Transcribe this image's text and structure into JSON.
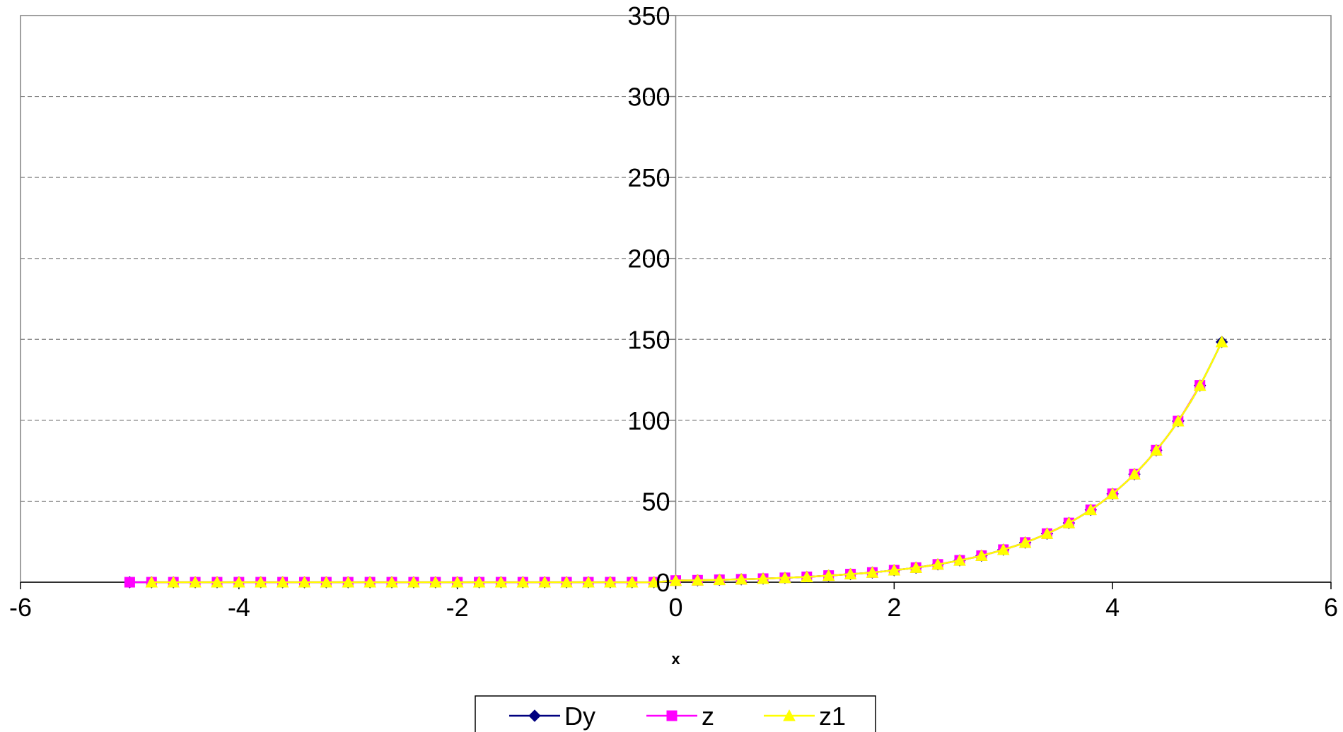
{
  "chart_data": {
    "type": "line",
    "title": "",
    "xlabel": "x",
    "ylabel": "",
    "xlim": [
      -6,
      6
    ],
    "ylim": [
      0,
      350
    ],
    "x_ticks": [
      -6,
      -4,
      -2,
      0,
      2,
      4,
      6
    ],
    "y_ticks": [
      0,
      50,
      100,
      150,
      200,
      250,
      300,
      350
    ],
    "grid": "horizontal dashed",
    "legend_position": "bottom",
    "series": [
      {
        "name": "Dy",
        "color": "#000080",
        "marker": "diamond",
        "x": [
          -5,
          -4.8,
          -4.6,
          -4.4,
          -4.2,
          -4,
          -3.8,
          -3.6,
          -3.4,
          -3.2,
          -3,
          -2.8,
          -2.6,
          -2.4,
          -2.2,
          -2,
          -1.8,
          -1.6,
          -1.4,
          -1.2,
          -1,
          -0.8,
          -0.6,
          -0.4,
          -0.2,
          0,
          0.2,
          0.4,
          0.6,
          0.8,
          1,
          1.2,
          1.4,
          1.6,
          1.8,
          2,
          2.2,
          2.4,
          2.6,
          2.8,
          3,
          3.2,
          3.4,
          3.6,
          3.8,
          4,
          4.2,
          4.4,
          4.6,
          4.8,
          5
        ],
        "y": [
          0,
          0,
          0,
          0,
          0,
          0,
          0,
          0,
          0,
          0,
          0,
          0,
          0,
          0,
          0,
          0,
          0,
          0,
          0,
          0,
          0,
          0,
          0,
          0,
          0,
          1,
          1.2,
          1.5,
          1.8,
          2.2,
          2.7,
          3.3,
          4.1,
          5.0,
          6.0,
          7.4,
          9.0,
          11.0,
          13.5,
          16.4,
          20.1,
          24.5,
          30.0,
          36.6,
          44.7,
          54.6,
          66.7,
          81.5,
          99.5,
          121.5,
          148.4
        ]
      },
      {
        "name": "z",
        "color": "#ff00ff",
        "marker": "square",
        "x": [
          -5,
          -4.8,
          -4.6,
          -4.4,
          -4.2,
          -4,
          -3.8,
          -3.6,
          -3.4,
          -3.2,
          -3,
          -2.8,
          -2.6,
          -2.4,
          -2.2,
          -2,
          -1.8,
          -1.6,
          -1.4,
          -1.2,
          -1,
          -0.8,
          -0.6,
          -0.4,
          -0.2,
          0,
          0.2,
          0.4,
          0.6,
          0.8,
          1,
          1.2,
          1.4,
          1.6,
          1.8,
          2,
          2.2,
          2.4,
          2.6,
          2.8,
          3,
          3.2,
          3.4,
          3.6,
          3.8,
          4,
          4.2,
          4.4,
          4.6,
          4.8
        ],
        "y": [
          0,
          0,
          0,
          0,
          0,
          0,
          0,
          0,
          0,
          0,
          0,
          0,
          0,
          0,
          0,
          0,
          0,
          0,
          0,
          0,
          0,
          0,
          0,
          0,
          0,
          1,
          1.2,
          1.5,
          1.8,
          2.2,
          2.7,
          3.3,
          4.1,
          5.0,
          6.0,
          7.4,
          9.0,
          11.0,
          13.5,
          16.4,
          20.1,
          24.5,
          30.0,
          36.6,
          44.7,
          54.6,
          66.7,
          81.5,
          99.5,
          121.5
        ]
      },
      {
        "name": "z1",
        "color": "#ffff00",
        "marker": "triangle",
        "x": [
          -4.8,
          -4.6,
          -4.4,
          -4.2,
          -4,
          -3.8,
          -3.6,
          -3.4,
          -3.2,
          -3,
          -2.8,
          -2.6,
          -2.4,
          -2.2,
          -2,
          -1.8,
          -1.6,
          -1.4,
          -1.2,
          -1,
          -0.8,
          -0.6,
          -0.4,
          -0.2,
          0,
          0.2,
          0.4,
          0.6,
          0.8,
          1,
          1.2,
          1.4,
          1.6,
          1.8,
          2,
          2.2,
          2.4,
          2.6,
          2.8,
          3,
          3.2,
          3.4,
          3.6,
          3.8,
          4,
          4.2,
          4.4,
          4.6,
          4.8,
          5
        ],
        "y": [
          0,
          0,
          0,
          0,
          0,
          0,
          0,
          0,
          0,
          0,
          0,
          0,
          0,
          0,
          0,
          0,
          0,
          0,
          0,
          0,
          0,
          0,
          0,
          0,
          1,
          1.2,
          1.5,
          1.8,
          2.2,
          2.7,
          3.3,
          4.1,
          5.0,
          6.0,
          7.4,
          9.0,
          11.0,
          13.5,
          16.4,
          20.1,
          24.5,
          30.0,
          36.6,
          44.7,
          54.6,
          66.7,
          81.5,
          99.5,
          121.5,
          148.4
        ]
      }
    ]
  }
}
